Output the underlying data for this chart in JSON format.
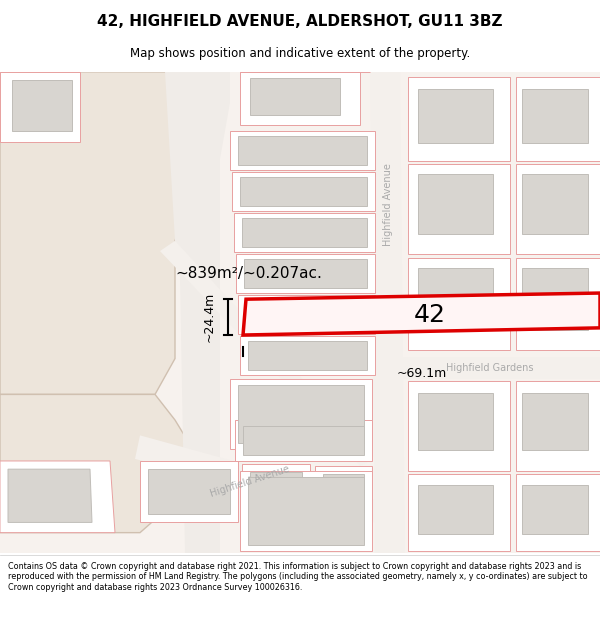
{
  "title": "42, HIGHFIELD AVENUE, ALDERSHOT, GU11 3BZ",
  "subtitle": "Map shows position and indicative extent of the property.",
  "footer": "Contains OS data © Crown copyright and database right 2021. This information is subject to Crown copyright and database rights 2023 and is reproduced with the permission of HM Land Registry. The polygons (including the associated geometry, namely x, y co-ordinates) are subject to Crown copyright and database rights 2023 Ordnance Survey 100026316.",
  "area_text": "~839m²/~0.207ac.",
  "width_text": "~69.1m",
  "height_text": "~24.4m",
  "plot_number": "42",
  "bg_color": "#f7f2ee",
  "road_color": "#f0ece8",
  "parcel_fc": "#ffffff",
  "parcel_ec": "#e8a0a0",
  "building_fc": "#d8d5d0",
  "building_ec": "#c0bdb8",
  "highlight_fc": "#fff5f5",
  "highlight_ec": "#dd0000",
  "large_area_fc": "#ede5db",
  "large_area_ec": "#d0c0b0",
  "road_stripe_fc": "#f8f6f4",
  "street_label_color": "#aaaaaa",
  "title_fontsize": 11,
  "subtitle_fontsize": 8.5,
  "footer_fontsize": 5.8,
  "area_fontsize": 11,
  "plot_num_fontsize": 18,
  "dim_fontsize": 9,
  "street_fontsize": 7
}
